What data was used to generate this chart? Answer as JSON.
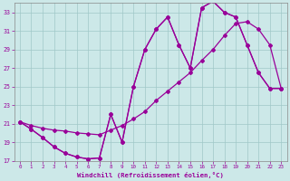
{
  "xlabel": "Windchill (Refroidissement éolien,°C)",
  "bg_color": "#cce8e8",
  "grid_color": "#a0c8c8",
  "line_color": "#990099",
  "xlim": [
    -0.5,
    23.5
  ],
  "ylim": [
    17,
    34
  ],
  "xticks": [
    0,
    1,
    2,
    3,
    4,
    5,
    6,
    7,
    8,
    9,
    10,
    11,
    12,
    13,
    14,
    15,
    16,
    17,
    18,
    19,
    20,
    21,
    22,
    23
  ],
  "yticks": [
    17,
    19,
    21,
    23,
    25,
    27,
    29,
    31,
    33
  ],
  "curve1_x": [
    0,
    1,
    2,
    3,
    4,
    5,
    6,
    7,
    8,
    9,
    10,
    11,
    12,
    13,
    14,
    15,
    16,
    17,
    18,
    19,
    20,
    21,
    22,
    23
  ],
  "curve1_y": [
    21.2,
    20.4,
    19.5,
    18.5,
    17.8,
    17.4,
    17.2,
    17.3,
    22.0,
    19.0,
    25.0,
    29.0,
    31.2,
    32.5,
    29.5,
    27.0,
    33.5,
    34.2,
    33.0,
    32.5,
    29.5,
    26.5,
    24.8,
    24.8
  ],
  "curve2_x": [
    0,
    1,
    2,
    3,
    4,
    5,
    6,
    7,
    8,
    9,
    10,
    11,
    12,
    13,
    14,
    15,
    16,
    17,
    18,
    19,
    20,
    21,
    22,
    23
  ],
  "curve2_y": [
    21.2,
    20.8,
    20.5,
    20.3,
    20.2,
    20.0,
    19.9,
    19.8,
    20.3,
    20.8,
    21.5,
    22.3,
    23.5,
    24.5,
    25.5,
    26.5,
    27.8,
    29.0,
    30.5,
    31.8,
    32.0,
    31.2,
    29.5,
    24.8
  ],
  "curve3_x": [
    0,
    1,
    2,
    3,
    4,
    5,
    6,
    7,
    8,
    9,
    10,
    11,
    12,
    13,
    14,
    15,
    16,
    17,
    18,
    19,
    20,
    21,
    22,
    23
  ],
  "curve3_y": [
    21.2,
    20.4,
    19.5,
    18.5,
    17.8,
    17.4,
    17.2,
    17.3,
    22.0,
    19.0,
    25.0,
    29.0,
    31.2,
    32.5,
    29.5,
    27.0,
    33.5,
    34.2,
    33.0,
    32.5,
    29.5,
    26.5,
    24.8,
    24.8
  ]
}
